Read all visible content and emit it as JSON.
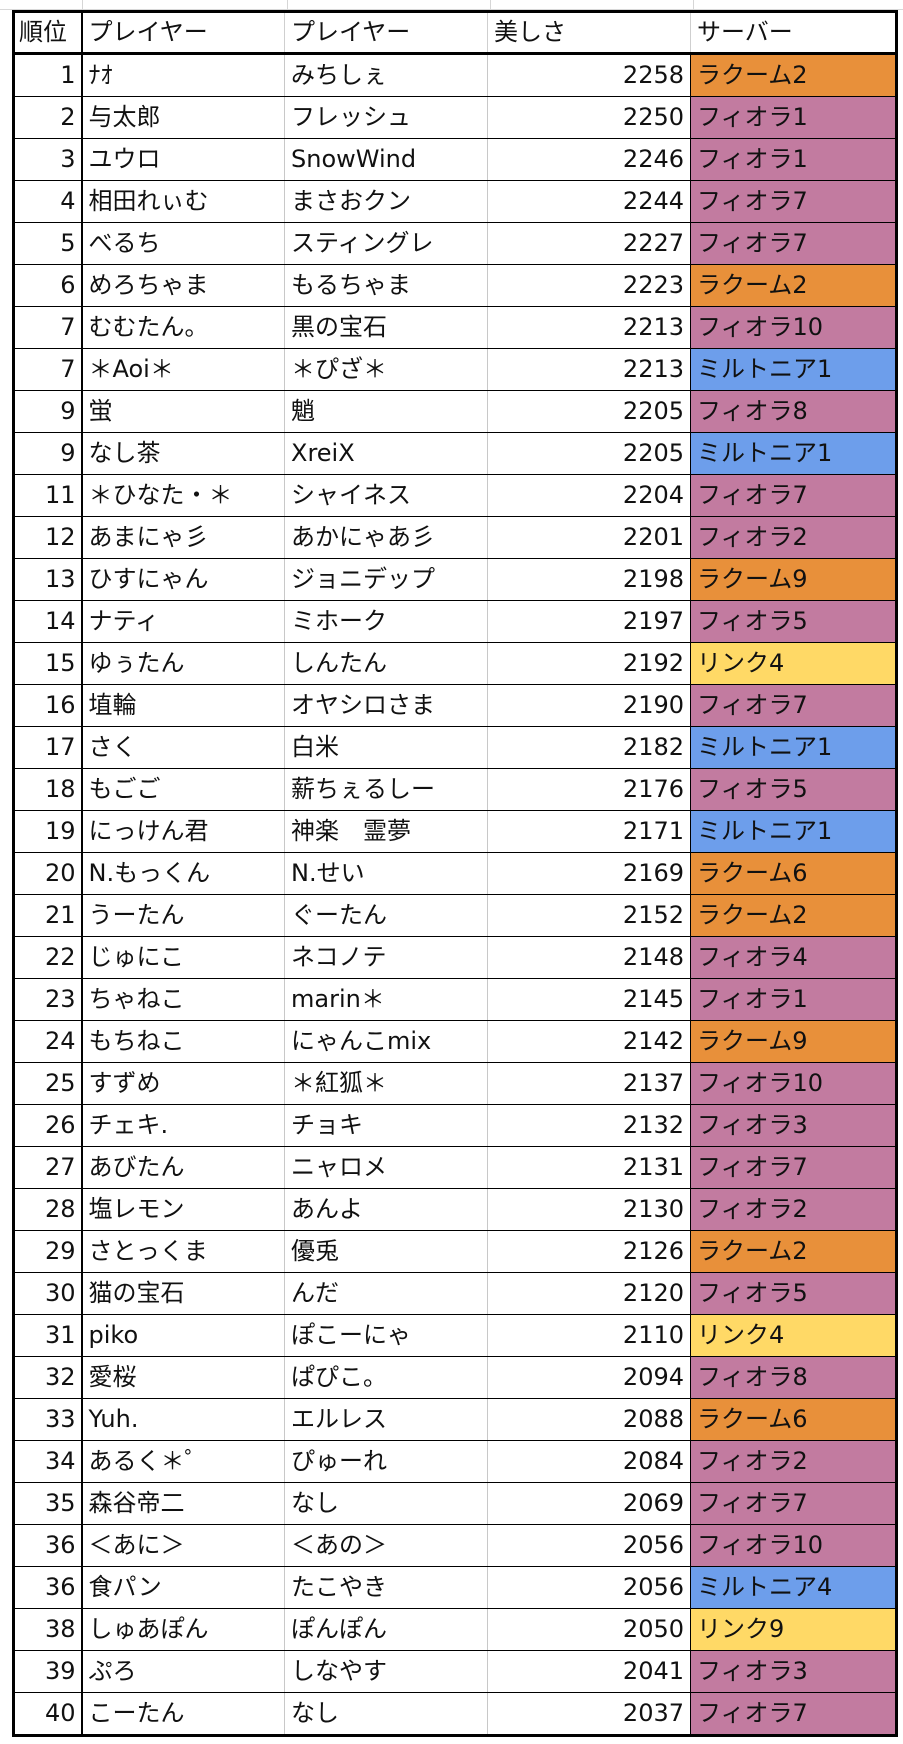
{
  "headers": {
    "rank": "順位",
    "player1": "プレイヤー",
    "player2": "プレイヤー",
    "beauty": "美しさ",
    "server": "サーバー"
  },
  "server_colors": {
    "ラクーム": "#e8903a",
    "フィオラ": "#c27ba0",
    "ミルトニア": "#6d9eeb",
    "リンク": "#ffd966"
  },
  "rows": [
    {
      "rank": "1",
      "player1": "ﾅｵ",
      "player2": "みちしぇ",
      "beauty": "2258",
      "server": "ラクーム2",
      "server_group": "ラクーム"
    },
    {
      "rank": "2",
      "player1": "与太郎",
      "player2": "フレッシュ",
      "beauty": "2250",
      "server": "フィオラ1",
      "server_group": "フィオラ"
    },
    {
      "rank": "3",
      "player1": "ユウロ",
      "player2": "SnowWind",
      "beauty": "2246",
      "server": "フィオラ1",
      "server_group": "フィオラ"
    },
    {
      "rank": "4",
      "player1": "相田れぃむ",
      "player2": "まさおクン",
      "beauty": "2244",
      "server": "フィオラ7",
      "server_group": "フィオラ"
    },
    {
      "rank": "5",
      "player1": "べるち",
      "player2": "スティングレ",
      "beauty": "2227",
      "server": "フィオラ7",
      "server_group": "フィオラ"
    },
    {
      "rank": "6",
      "player1": "めろちゃま",
      "player2": "もるちゃま",
      "beauty": "2223",
      "server": "ラクーム2",
      "server_group": "ラクーム"
    },
    {
      "rank": "7",
      "player1": "むむたん。",
      "player2": "黒の宝石",
      "beauty": "2213",
      "server": "フィオラ10",
      "server_group": "フィオラ"
    },
    {
      "rank": "7",
      "player1": "＊Aoi＊",
      "player2": "＊ぴざ＊",
      "beauty": "2213",
      "server": "ミルトニア1",
      "server_group": "ミルトニア"
    },
    {
      "rank": "9",
      "player1": "蛍",
      "player2": "魈",
      "beauty": "2205",
      "server": "フィオラ8",
      "server_group": "フィオラ"
    },
    {
      "rank": "9",
      "player1": "なし茶",
      "player2": "XreiX",
      "beauty": "2205",
      "server": "ミルトニア1",
      "server_group": "ミルトニア"
    },
    {
      "rank": "11",
      "player1": "＊ひなた・＊",
      "player2": "シャイネス",
      "beauty": "2204",
      "server": "フィオラ7",
      "server_group": "フィオラ"
    },
    {
      "rank": "12",
      "player1": "あまにゃ彡",
      "player2": "あかにゃあ彡",
      "beauty": "2201",
      "server": "フィオラ2",
      "server_group": "フィオラ"
    },
    {
      "rank": "13",
      "player1": "ひすにゃん",
      "player2": "ジョニデップ",
      "beauty": "2198",
      "server": "ラクーム9",
      "server_group": "ラクーム"
    },
    {
      "rank": "14",
      "player1": "ナティ",
      "player2": "ミホーク",
      "beauty": "2197",
      "server": "フィオラ5",
      "server_group": "フィオラ"
    },
    {
      "rank": "15",
      "player1": "ゆぅたん",
      "player2": "しんたん",
      "beauty": "2192",
      "server": "リンク4",
      "server_group": "リンク"
    },
    {
      "rank": "16",
      "player1": "埴輪",
      "player2": "オヤシロさま",
      "beauty": "2190",
      "server": "フィオラ7",
      "server_group": "フィオラ"
    },
    {
      "rank": "17",
      "player1": "さく",
      "player2": "白米",
      "beauty": "2182",
      "server": "ミルトニア1",
      "server_group": "ミルトニア"
    },
    {
      "rank": "18",
      "player1": "もごご",
      "player2": "薪ちぇるしー",
      "beauty": "2176",
      "server": "フィオラ5",
      "server_group": "フィオラ"
    },
    {
      "rank": "19",
      "player1": "にっけん君",
      "player2": "神楽　霊夢",
      "beauty": "2171",
      "server": "ミルトニア1",
      "server_group": "ミルトニア"
    },
    {
      "rank": "20",
      "player1": "N.もっくん",
      "player2": "N.せい",
      "beauty": "2169",
      "server": "ラクーム6",
      "server_group": "ラクーム"
    },
    {
      "rank": "21",
      "player1": "うーたん",
      "player2": "ぐーたん",
      "beauty": "2152",
      "server": "ラクーム2",
      "server_group": "ラクーム"
    },
    {
      "rank": "22",
      "player1": "じゅにこ",
      "player2": "ネコノテ",
      "beauty": "2148",
      "server": "フィオラ4",
      "server_group": "フィオラ"
    },
    {
      "rank": "23",
      "player1": "ちゃねこ",
      "player2": "marin＊",
      "beauty": "2145",
      "server": "フィオラ1",
      "server_group": "フィオラ"
    },
    {
      "rank": "24",
      "player1": "もちねこ",
      "player2": "にゃんこmix",
      "beauty": "2142",
      "server": "ラクーム9",
      "server_group": "ラクーム"
    },
    {
      "rank": "25",
      "player1": "すずめ",
      "player2": "＊紅狐＊",
      "beauty": "2137",
      "server": "フィオラ10",
      "server_group": "フィオラ"
    },
    {
      "rank": "26",
      "player1": "チェキ.",
      "player2": "チョキ",
      "beauty": "2132",
      "server": "フィオラ3",
      "server_group": "フィオラ"
    },
    {
      "rank": "27",
      "player1": "あびたん",
      "player2": "ニャロメ",
      "beauty": "2131",
      "server": "フィオラ7",
      "server_group": "フィオラ"
    },
    {
      "rank": "28",
      "player1": "塩レモン",
      "player2": "あんよ",
      "beauty": "2130",
      "server": "フィオラ2",
      "server_group": "フィオラ"
    },
    {
      "rank": "29",
      "player1": "さとっくま",
      "player2": "優兎",
      "beauty": "2126",
      "server": "ラクーム2",
      "server_group": "ラクーム"
    },
    {
      "rank": "30",
      "player1": "猫の宝石",
      "player2": "んだ",
      "beauty": "2120",
      "server": "フィオラ5",
      "server_group": "フィオラ"
    },
    {
      "rank": "31",
      "player1": "piko",
      "player2": "ぽこーにゃ",
      "beauty": "2110",
      "server": "リンク4",
      "server_group": "リンク"
    },
    {
      "rank": "32",
      "player1": "愛桜",
      "player2": "ぱぴこ。",
      "beauty": "2094",
      "server": "フィオラ8",
      "server_group": "フィオラ"
    },
    {
      "rank": "33",
      "player1": "Yuh.",
      "player2": "エルレス",
      "beauty": "2088",
      "server": "ラクーム6",
      "server_group": "ラクーム"
    },
    {
      "rank": "34",
      "player1": "あるく＊゜",
      "player2": "ぴゅーれ",
      "beauty": "2084",
      "server": "フィオラ2",
      "server_group": "フィオラ"
    },
    {
      "rank": "35",
      "player1": "森谷帝二",
      "player2": "なし",
      "beauty": "2069",
      "server": "フィオラ7",
      "server_group": "フィオラ"
    },
    {
      "rank": "36",
      "player1": "＜あに＞",
      "player2": "＜あの＞",
      "beauty": "2056",
      "server": "フィオラ10",
      "server_group": "フィオラ"
    },
    {
      "rank": "36",
      "player1": "食パン",
      "player2": "たこやき",
      "beauty": "2056",
      "server": "ミルトニア4",
      "server_group": "ミルトニア"
    },
    {
      "rank": "38",
      "player1": "しゅあぽん",
      "player2": "ぽんぽん",
      "beauty": "2050",
      "server": "リンク9",
      "server_group": "リンク"
    },
    {
      "rank": "39",
      "player1": "ぷろ",
      "player2": "しなやす",
      "beauty": "2041",
      "server": "フィオラ3",
      "server_group": "フィオラ"
    },
    {
      "rank": "40",
      "player1": "こーたん",
      "player2": "なし",
      "beauty": "2037",
      "server": "フィオラ7",
      "server_group": "フィオラ"
    }
  ]
}
